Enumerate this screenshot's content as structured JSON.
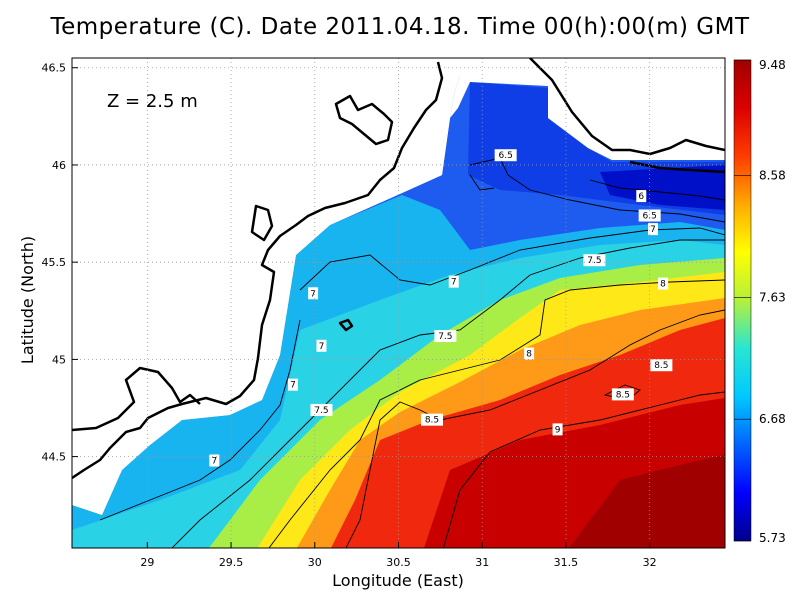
{
  "chart_data": {
    "type": "heatmap",
    "title": "Temperature (C). Date 2011.04.18. Time 00(h):00(m) GMT",
    "xlabel": "Longitude (East)",
    "ylabel": "Latitude (North)",
    "annotation": "Z  =  2.5  m",
    "xlim": [
      28.55,
      32.45
    ],
    "ylim": [
      44.03,
      46.55
    ],
    "x_ticks": [
      29,
      29.5,
      30,
      30.5,
      31,
      31.5,
      32
    ],
    "x_tick_labels": [
      "29",
      "29.5",
      "30",
      "30.5",
      "31",
      "31.5",
      "32"
    ],
    "y_ticks": [
      44.5,
      45,
      45.5,
      46,
      46.5
    ],
    "y_tick_labels": [
      "44.5",
      "45",
      "45.5",
      "46",
      "46.5"
    ],
    "grid": true,
    "colorbar": {
      "min": 5.73,
      "max": 9.48,
      "tick_values": [
        9.48,
        8.58,
        7.63,
        6.68,
        5.73
      ],
      "tick_labels": [
        "9.48",
        "8.58",
        "7.63",
        "6.68",
        "5.73"
      ],
      "colors": [
        "#00008b",
        "#0000ff",
        "#0064ff",
        "#00c8ff",
        "#28e6d2",
        "#b4f03c",
        "#ffff00",
        "#ffaa00",
        "#ff3c00",
        "#dc0000",
        "#a00000"
      ]
    },
    "contour_labels": [
      {
        "text": "6.5",
        "lon": 31.14,
        "lat": 46.05
      },
      {
        "text": "6",
        "lon": 31.95,
        "lat": 45.84
      },
      {
        "text": "6.5",
        "lon": 32.0,
        "lat": 45.74
      },
      {
        "text": "7",
        "lon": 32.02,
        "lat": 45.67
      },
      {
        "text": "7.5",
        "lon": 31.67,
        "lat": 45.51
      },
      {
        "text": "8",
        "lon": 32.08,
        "lat": 45.39
      },
      {
        "text": "7",
        "lon": 30.83,
        "lat": 45.4
      },
      {
        "text": "7",
        "lon": 29.99,
        "lat": 45.34
      },
      {
        "text": "7",
        "lon": 30.04,
        "lat": 45.07
      },
      {
        "text": "7.5",
        "lon": 30.78,
        "lat": 45.12
      },
      {
        "text": "8",
        "lon": 31.28,
        "lat": 45.03
      },
      {
        "text": "8.5",
        "lon": 32.07,
        "lat": 44.97
      },
      {
        "text": "8.5",
        "lon": 31.84,
        "lat": 44.82
      },
      {
        "text": "7",
        "lon": 29.87,
        "lat": 44.87
      },
      {
        "text": "7.5",
        "lon": 30.04,
        "lat": 44.74
      },
      {
        "text": "8.5",
        "lon": 30.7,
        "lat": 44.69
      },
      {
        "text": "9",
        "lon": 31.45,
        "lat": 44.64
      },
      {
        "text": "7",
        "lon": 29.4,
        "lat": 44.48
      }
    ]
  }
}
